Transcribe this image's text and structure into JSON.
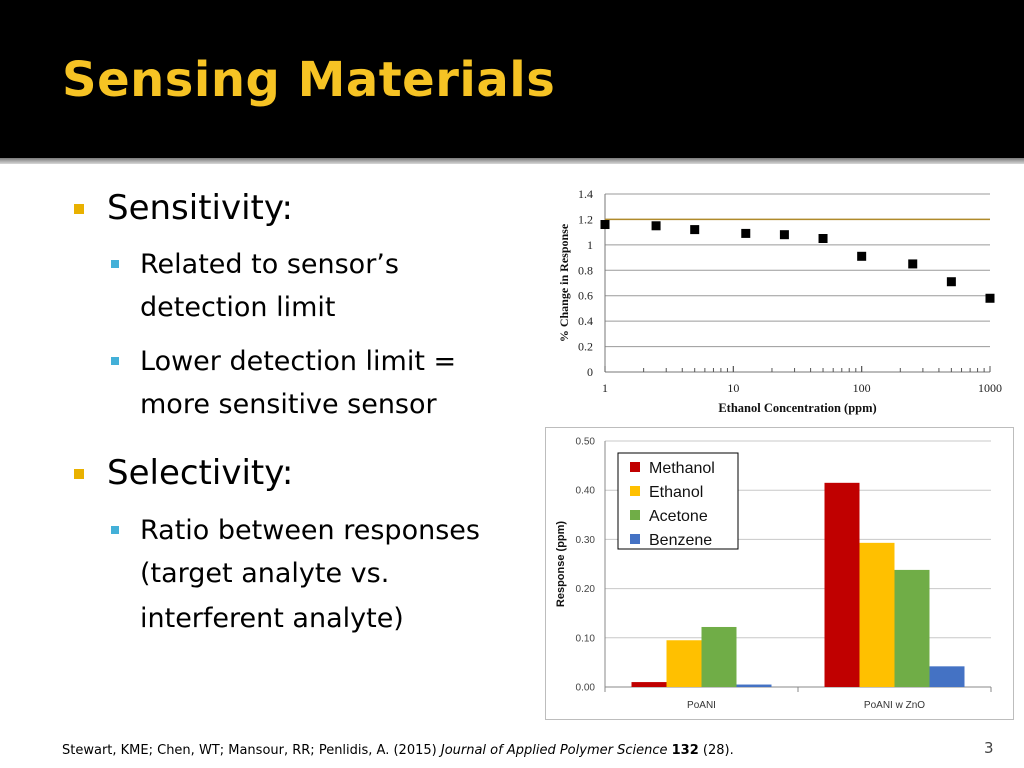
{
  "slide": {
    "title": "Sensing Materials",
    "number": "3",
    "bullets": [
      {
        "text": "Sensitivity:",
        "sub": [
          "Related to sensor’s",
          "detection limit",
          "Lower detection limit =",
          "more sensitive sensor"
        ]
      },
      {
        "text": "Selectivity:",
        "sub": [
          "Ratio between responses",
          "(target analyte vs.",
          "interferent analyte)"
        ]
      }
    ],
    "citation": {
      "authors": "Stewart, KME; Chen, WT; Mansour, RR; Penlidis, A. (2015) ",
      "journal": "Journal of Applied Polymer Science",
      "volume": "132",
      "issue": " (28)."
    }
  },
  "chart_data": [
    {
      "type": "scatter",
      "xscale": "log",
      "xlabel": "Ethanol Concentration (ppm)",
      "ylabel": "% Change in Response",
      "xlim": [
        1,
        1000
      ],
      "ylim": [
        0,
        1.4
      ],
      "xticks": [
        "1",
        "10",
        "100",
        "1000"
      ],
      "yticks": [
        "0",
        "0.2",
        "0.4",
        "0.6",
        "0.8",
        "1",
        "1.2",
        "1.4"
      ],
      "reference_line": 1.2,
      "points": [
        {
          "x": 1,
          "y": 1.16
        },
        {
          "x": 2.5,
          "y": 1.15
        },
        {
          "x": 5,
          "y": 1.12
        },
        {
          "x": 12.5,
          "y": 1.09
        },
        {
          "x": 25,
          "y": 1.08
        },
        {
          "x": 50,
          "y": 1.05
        },
        {
          "x": 100,
          "y": 0.91
        },
        {
          "x": 250,
          "y": 0.85
        },
        {
          "x": 500,
          "y": 0.71
        },
        {
          "x": 1000,
          "y": 0.58
        }
      ],
      "colors": {
        "points": "#000000",
        "reference_line": "#b08a2a"
      }
    },
    {
      "type": "bar",
      "categories": [
        "PoANI",
        "PoANI w ZnO"
      ],
      "ylabel": "Response (ppm)",
      "ylim": [
        0,
        0.5
      ],
      "yticks": [
        "0.00",
        "0.10",
        "0.20",
        "0.30",
        "0.40",
        "0.50"
      ],
      "legend_position": "top-left",
      "series": [
        {
          "name": "Methanol",
          "color": "#c00000",
          "values": [
            0.01,
            0.415
          ]
        },
        {
          "name": "Ethanol",
          "color": "#ffc000",
          "values": [
            0.095,
            0.293
          ]
        },
        {
          "name": "Acetone",
          "color": "#70ad47",
          "values": [
            0.122,
            0.238
          ]
        },
        {
          "name": "Benzene",
          "color": "#4472c4",
          "values": [
            0.005,
            0.042
          ]
        }
      ]
    }
  ]
}
